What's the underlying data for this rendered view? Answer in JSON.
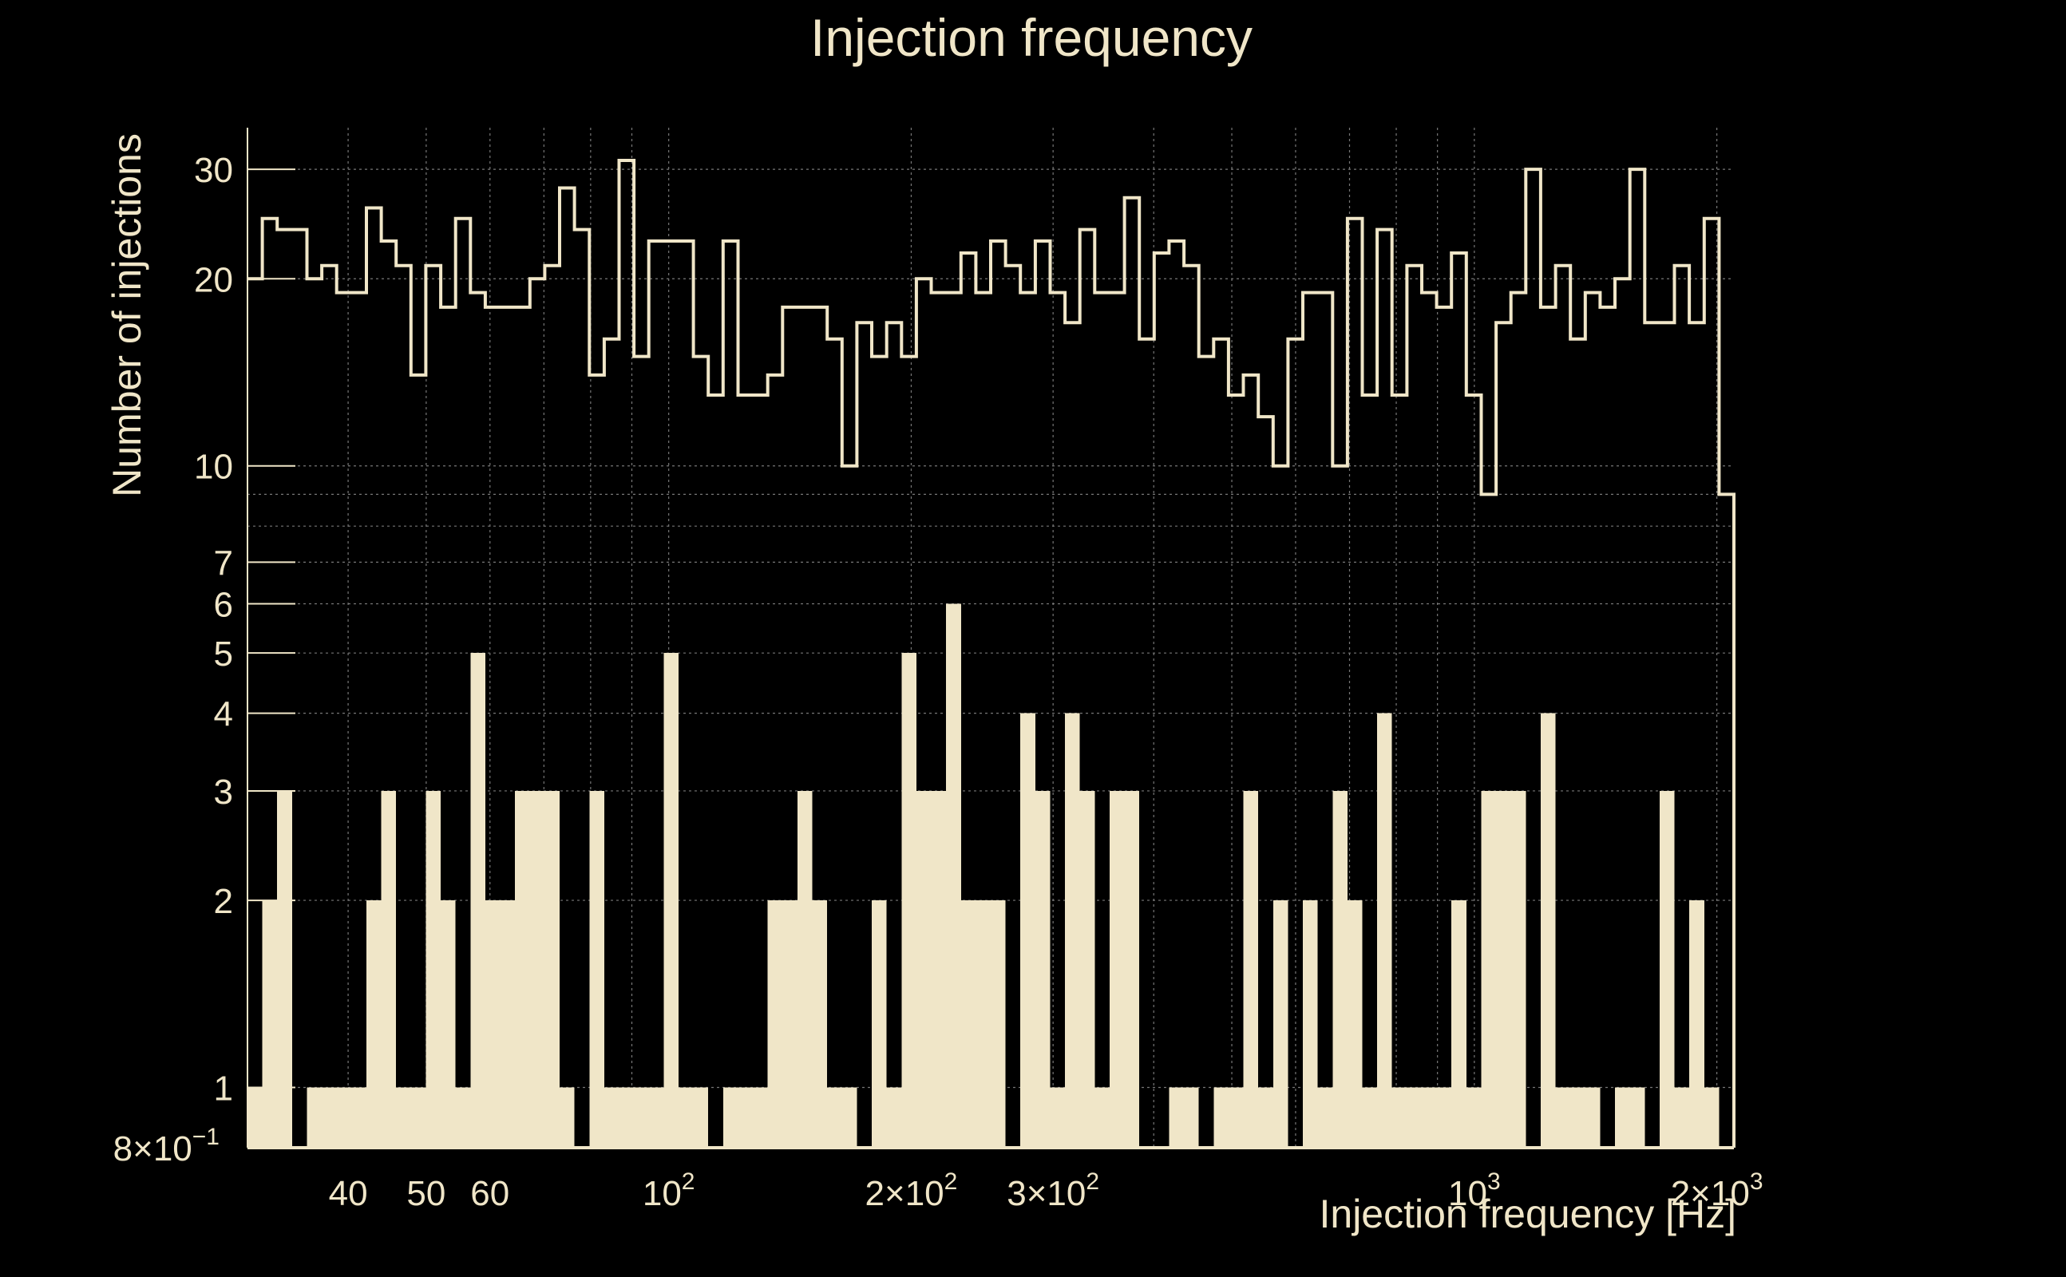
{
  "chart_data": {
    "type": "bar",
    "title": "Injection frequency",
    "xlabel": "Injection frequency [Hz]",
    "ylabel": "Number of injections",
    "x_scale": "log",
    "y_scale": "log",
    "xlim": [
      30,
      2100
    ],
    "ylim": [
      0.8,
      35
    ],
    "grid": true,
    "colors": {
      "background": "#000000",
      "text": "#f0e6c8",
      "fill": "#f0e6c8",
      "grid": "#777777"
    },
    "x_ticks": [
      {
        "label": "40",
        "value": 40
      },
      {
        "label": "50",
        "value": 50
      },
      {
        "label": "60",
        "value": 60
      },
      {
        "label": "10",
        "sup": "2",
        "value": 100
      },
      {
        "label": "2×10",
        "sup": "2",
        "value": 200
      },
      {
        "label": "3×10",
        "sup": "2",
        "value": 300
      },
      {
        "label": "10",
        "sup": "3",
        "value": 1000
      },
      {
        "label": "2×10",
        "sup": "3",
        "value": 2000
      }
    ],
    "y_ticks": [
      {
        "label": "8×10",
        "sup": "−1",
        "value": 0.8
      },
      {
        "label": "1",
        "value": 1
      },
      {
        "label": "2",
        "value": 2
      },
      {
        "label": "3",
        "value": 3
      },
      {
        "label": "4",
        "value": 4
      },
      {
        "label": "5",
        "value": 5
      },
      {
        "label": "6",
        "value": 6
      },
      {
        "label": "7",
        "value": 7
      },
      {
        "label": "10",
        "value": 10
      },
      {
        "label": "20",
        "value": 20
      },
      {
        "label": "30",
        "value": 30
      }
    ],
    "bin_edges": {
      "start": 30,
      "end": 2100,
      "count": 100
    },
    "series": [
      {
        "style": "step",
        "values": [
          20,
          25,
          24,
          24,
          20,
          21,
          19,
          19,
          26,
          23,
          21,
          14,
          21,
          18,
          25,
          19,
          18,
          18,
          18,
          20,
          21,
          28,
          24,
          14,
          16,
          31,
          15,
          23,
          23,
          23,
          15,
          13,
          23,
          13,
          13,
          14,
          18,
          18,
          18,
          16,
          10,
          17,
          15,
          17,
          15,
          20,
          19,
          19,
          22,
          19,
          23,
          21,
          19,
          23,
          19,
          17,
          24,
          19,
          19,
          27,
          16,
          22,
          23,
          21,
          15,
          16,
          13,
          14,
          12,
          10,
          16,
          19,
          19,
          10,
          25,
          13,
          24,
          13,
          21,
          19,
          18,
          22,
          13,
          9,
          17,
          19,
          30,
          18,
          21,
          16,
          19,
          18,
          20,
          30,
          17,
          17,
          21,
          17,
          25,
          9
        ]
      },
      {
        "style": "filled",
        "values": [
          1,
          2,
          3,
          0,
          1,
          1,
          1,
          1,
          2,
          3,
          1,
          1,
          3,
          2,
          1,
          5,
          2,
          2,
          3,
          3,
          3,
          1,
          0,
          3,
          1,
          1,
          1,
          1,
          5,
          1,
          1,
          0,
          1,
          1,
          1,
          2,
          2,
          3,
          2,
          1,
          1,
          0,
          2,
          1,
          5,
          3,
          3,
          6,
          2,
          2,
          2,
          0,
          4,
          3,
          1,
          4,
          3,
          1,
          3,
          3,
          0,
          0,
          1,
          1,
          0,
          1,
          1,
          3,
          1,
          2,
          0,
          2,
          1,
          3,
          2,
          1,
          4,
          1,
          1,
          1,
          1,
          2,
          1,
          3,
          3,
          3,
          0,
          4,
          1,
          1,
          1,
          0,
          1,
          1,
          0,
          3,
          1,
          2,
          1,
          0
        ]
      }
    ]
  }
}
